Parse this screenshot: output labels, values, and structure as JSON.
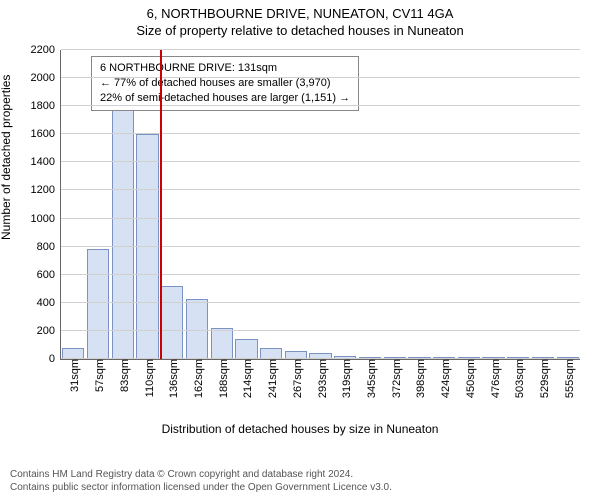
{
  "title_line1": "6, NORTHBOURNE DRIVE, NUNEATON, CV11 4GA",
  "title_line2": "Size of property relative to detached houses in Nuneaton",
  "chart": {
    "type": "histogram",
    "ylabel": "Number of detached properties",
    "xlabel": "Distribution of detached houses by size in Nuneaton",
    "ylim_max": 2200,
    "ytick_step": 200,
    "bar_fill": "#d6e2f3",
    "bar_stroke": "#7a93c2",
    "grid_color": "#d0d0d0",
    "background_color": "#ffffff",
    "categories": [
      "31sqm",
      "57sqm",
      "83sqm",
      "110sqm",
      "136sqm",
      "162sqm",
      "188sqm",
      "214sqm",
      "241sqm",
      "267sqm",
      "293sqm",
      "319sqm",
      "345sqm",
      "372sqm",
      "398sqm",
      "424sqm",
      "450sqm",
      "476sqm",
      "503sqm",
      "529sqm",
      "555sqm"
    ],
    "values": [
      80,
      780,
      1970,
      1600,
      520,
      430,
      220,
      140,
      80,
      60,
      40,
      20,
      10,
      10,
      5,
      5,
      5,
      5,
      5,
      5,
      5
    ],
    "marker": {
      "color": "#cc0000",
      "after_index": 3
    },
    "callout": {
      "line1": "6 NORTHBOURNE DRIVE: 131sqm",
      "line2": "← 77% of detached houses are smaller (3,970)",
      "line3": "22% of semi-detached houses are larger (1,151) →"
    }
  },
  "footer_line1": "Contains HM Land Registry data © Crown copyright and database right 2024.",
  "footer_line2": "Contains public sector information licensed under the Open Government Licence v3.0."
}
